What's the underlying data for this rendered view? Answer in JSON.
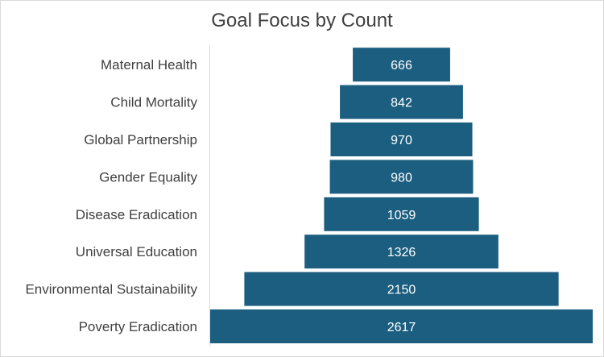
{
  "chart_data": {
    "type": "bar",
    "subtype": "funnel",
    "title": "Goal Focus by Count",
    "categories": [
      "Maternal Health",
      "Child Mortality",
      "Global Partnership",
      "Gender Equality",
      "Disease Eradication",
      "Universal Education",
      "Environmental Sustainability",
      "Poverty Eradication"
    ],
    "values": [
      666,
      842,
      970,
      980,
      1059,
      1326,
      2150,
      2617
    ],
    "bar_color": "#1b5e80",
    "label_color": "#ffffff",
    "orientation": "horizontal-centered",
    "grid": false
  }
}
